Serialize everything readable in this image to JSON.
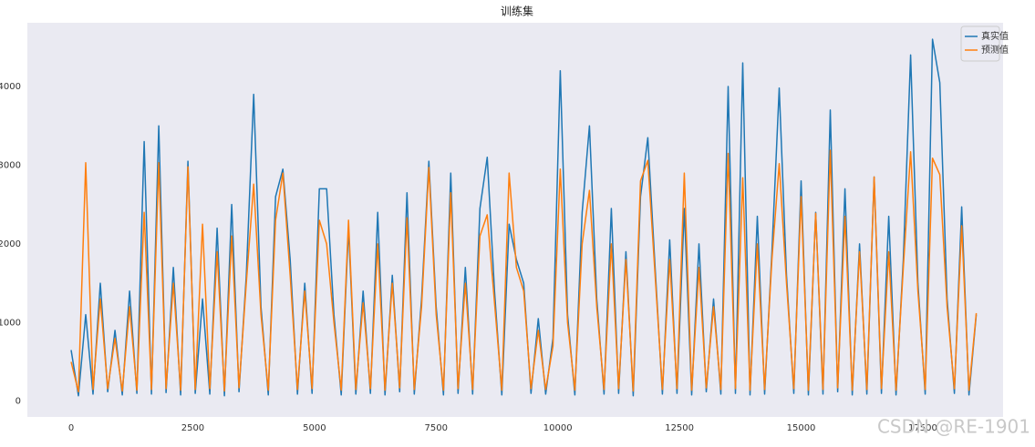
{
  "chart_data": {
    "type": "line",
    "title": "训练集",
    "x": [
      0,
      150,
      300,
      450,
      600,
      750,
      900,
      1050,
      1200,
      1350,
      1500,
      1650,
      1800,
      1950,
      2100,
      2250,
      2400,
      2550,
      2700,
      2850,
      3000,
      3150,
      3300,
      3450,
      3600,
      3750,
      3900,
      4050,
      4200,
      4350,
      4500,
      4650,
      4800,
      4950,
      5100,
      5250,
      5400,
      5550,
      5700,
      5850,
      6000,
      6150,
      6300,
      6450,
      6600,
      6750,
      6900,
      7050,
      7200,
      7350,
      7500,
      7650,
      7800,
      7950,
      8100,
      8250,
      8400,
      8550,
      8700,
      8850,
      9000,
      9150,
      9300,
      9450,
      9600,
      9750,
      9900,
      10050,
      10200,
      10350,
      10500,
      10650,
      10800,
      10950,
      11100,
      11250,
      11400,
      11550,
      11700,
      11850,
      12000,
      12150,
      12300,
      12450,
      12600,
      12750,
      12900,
      13050,
      13200,
      13350,
      13500,
      13650,
      13800,
      13950,
      14100,
      14250,
      14400,
      14550,
      14700,
      14850,
      15000,
      15150,
      15300,
      15450,
      15600,
      15750,
      15900,
      16050,
      16200,
      16350,
      16500,
      16650,
      16800,
      16950,
      17100,
      17250,
      17400,
      17550,
      17700,
      17850,
      18000,
      18150,
      18300,
      18450,
      18600
    ],
    "series": [
      {
        "name": "真实值",
        "color": "#1f77b4",
        "values": [
          650,
          70,
          1100,
          90,
          1500,
          120,
          900,
          80,
          1400,
          100,
          3300,
          90,
          3500,
          110,
          1700,
          80,
          3050,
          100,
          1300,
          90,
          2200,
          70,
          2500,
          120,
          1600,
          3900,
          1200,
          80,
          2600,
          2950,
          1800,
          90,
          1500,
          100,
          2700,
          2700,
          1100,
          80,
          2200,
          90,
          1400,
          100,
          2400,
          80,
          1600,
          120,
          2650,
          90,
          1300,
          3050,
          1200,
          80,
          2900,
          100,
          1700,
          90,
          2450,
          3100,
          1400,
          80,
          2250,
          1800,
          1500,
          100,
          1050,
          90,
          800,
          4200,
          1100,
          80,
          2400,
          3500,
          1300,
          90,
          2450,
          100,
          1900,
          70,
          2600,
          3350,
          1700,
          90,
          2050,
          100,
          2450,
          80,
          2000,
          120,
          1300,
          90,
          4000,
          100,
          4300,
          80,
          2350,
          90,
          1900,
          3980,
          1600,
          100,
          2800,
          80,
          2400,
          90,
          3700,
          120,
          2700,
          80,
          2000,
          90,
          2850,
          100,
          2350,
          80,
          1800,
          4400,
          1500,
          90,
          4600,
          4050,
          1300,
          100,
          2470,
          80,
          1100
        ]
      },
      {
        "name": "预测值",
        "color": "#ff7f0e",
        "values": [
          500,
          120,
          3030,
          150,
          1300,
          160,
          800,
          130,
          1200,
          140,
          2400,
          150,
          3030,
          160,
          1500,
          140,
          2980,
          150,
          2250,
          160,
          1900,
          130,
          2100,
          170,
          1500,
          2760,
          1100,
          140,
          2300,
          2900,
          1600,
          150,
          1400,
          160,
          2300,
          2000,
          1000,
          140,
          2300,
          150,
          1250,
          160,
          2000,
          140,
          1500,
          170,
          2330,
          150,
          1200,
          2970,
          1100,
          140,
          2650,
          160,
          1500,
          150,
          2100,
          2370,
          1250,
          140,
          2900,
          1700,
          1400,
          160,
          900,
          150,
          700,
          2950,
          1000,
          140,
          2000,
          2680,
          1200,
          150,
          2000,
          160,
          1800,
          130,
          2800,
          3060,
          1600,
          150,
          1800,
          160,
          2900,
          140,
          1700,
          170,
          1200,
          150,
          3150,
          160,
          2840,
          140,
          2000,
          150,
          1800,
          3020,
          1500,
          160,
          2600,
          140,
          2390,
          150,
          3190,
          170,
          2350,
          140,
          1900,
          150,
          2850,
          160,
          1900,
          140,
          1700,
          3170,
          1400,
          150,
          3090,
          2880,
          1200,
          160,
          2230,
          140,
          1120
        ]
      }
    ],
    "xlim": [
      -900,
      19150
    ],
    "ylim": [
      -200,
      4810
    ],
    "xticks": [
      0,
      2500,
      5000,
      7500,
      10000,
      12500,
      15000,
      17500
    ],
    "yticks": [
      0,
      1000,
      2000,
      3000,
      4000
    ],
    "grid": false,
    "legend": "upper right",
    "background": "#eaeaf2"
  },
  "watermark": "CSDN @RE-1901"
}
